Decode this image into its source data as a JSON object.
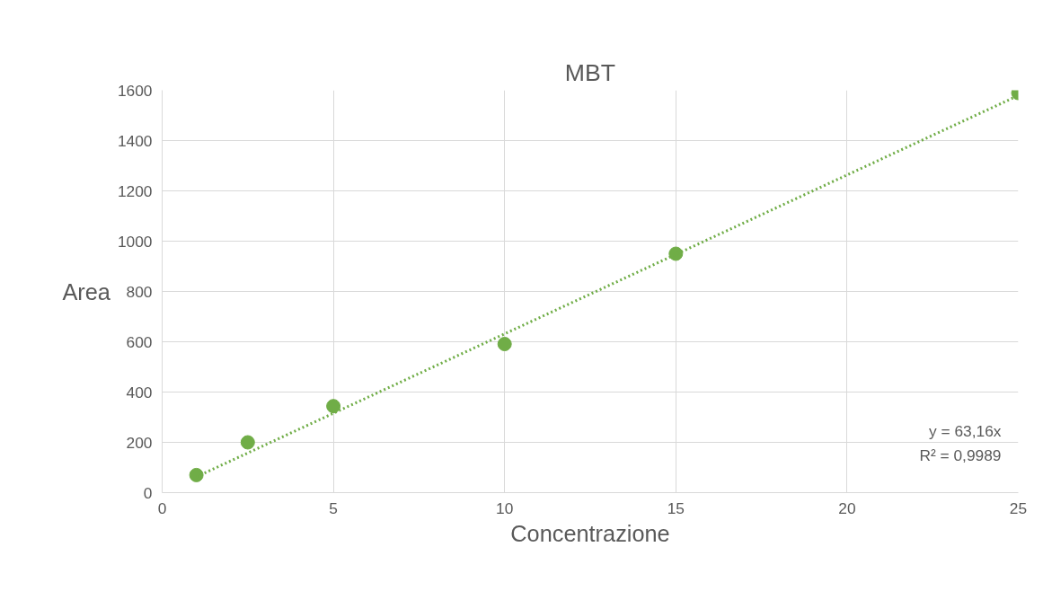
{
  "chart_data": {
    "type": "scatter",
    "title": "MBT",
    "xlabel": "Concentrazione",
    "ylabel": "Area",
    "series": [
      {
        "color": "#70ad47",
        "x": [
          1,
          2.5,
          5,
          10,
          15,
          25
        ],
        "values": [
          70,
          200,
          344,
          591,
          950,
          1589
        ],
        "marker": "circle"
      },
      {
        "type": "line",
        "color": "#70ad47",
        "x": [
          1,
          25
        ],
        "values": [
          63,
          1579
        ],
        "line_style": "dotted"
      }
    ],
    "xlim": [
      0,
      25
    ],
    "xticks": [
      0,
      5,
      10,
      15,
      20,
      25
    ],
    "ylim": [
      0,
      1600
    ],
    "yticks": [
      0,
      200,
      400,
      600,
      800,
      1000,
      1200,
      1400,
      1600
    ],
    "grid": true,
    "annotations": [
      "y = 63,16x",
      "R² = 0,9989"
    ]
  }
}
